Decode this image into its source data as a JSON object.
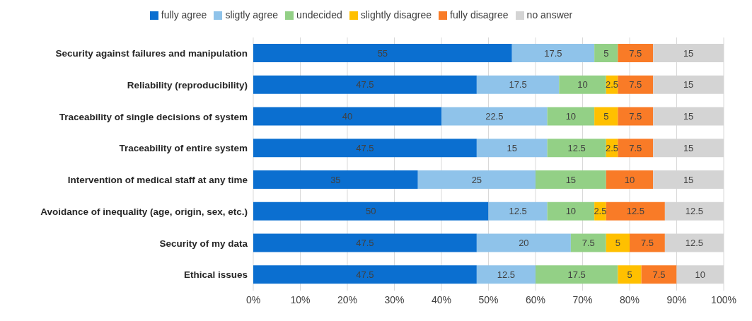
{
  "chart_data": {
    "type": "bar",
    "orientation": "horizontal",
    "stacked": true,
    "categories": [
      "Security against failures and manipulation",
      "Reliability (reproducibility)",
      "Traceability of single decisions of system",
      "Traceability of entire system",
      "Intervention of medical staff at any time",
      "Avoidance of inequality (age, origin, sex, etc.)",
      "Security of my data",
      "Ethical issues"
    ],
    "series": [
      {
        "name": "fully agree",
        "color": "#0b6fd0",
        "values": [
          55,
          47.5,
          40,
          47.5,
          35,
          50,
          47.5,
          47.5
        ]
      },
      {
        "name": "sligtly agree",
        "color": "#8fc3ea",
        "values": [
          17.5,
          17.5,
          22.5,
          15,
          25,
          12.5,
          20,
          12.5
        ]
      },
      {
        "name": "undecided",
        "color": "#93d086",
        "values": [
          5,
          10,
          10,
          12.5,
          15,
          10,
          7.5,
          17.5
        ]
      },
      {
        "name": "slightly disagree",
        "color": "#ffc000",
        "values": [
          null,
          2.5,
          5,
          2.5,
          null,
          2.5,
          5,
          5
        ]
      },
      {
        "name": "fully disagree",
        "color": "#f97b27",
        "values": [
          7.5,
          7.5,
          7.5,
          7.5,
          10,
          12.5,
          7.5,
          7.5
        ]
      },
      {
        "name": "no answer",
        "color": "#d4d4d4",
        "values": [
          15,
          15,
          15,
          15,
          15,
          12.5,
          12.5,
          10
        ]
      }
    ],
    "xlim": [
      0,
      100
    ],
    "xticks": [
      {
        "value": 0,
        "label": "0%"
      },
      {
        "value": 10,
        "label": "10%"
      },
      {
        "value": 20,
        "label": "20%"
      },
      {
        "value": 30,
        "label": "30%"
      },
      {
        "value": 40,
        "label": "40%"
      },
      {
        "value": 50,
        "label": "50%"
      },
      {
        "value": 60,
        "label": "60%"
      },
      {
        "value": 70,
        "label": "70%"
      },
      {
        "value": 80,
        "label": "80%"
      },
      {
        "value": 90,
        "label": "90%"
      },
      {
        "value": 100,
        "label": "100%"
      }
    ],
    "grid": "x",
    "legend": "top",
    "data_labels": true
  }
}
